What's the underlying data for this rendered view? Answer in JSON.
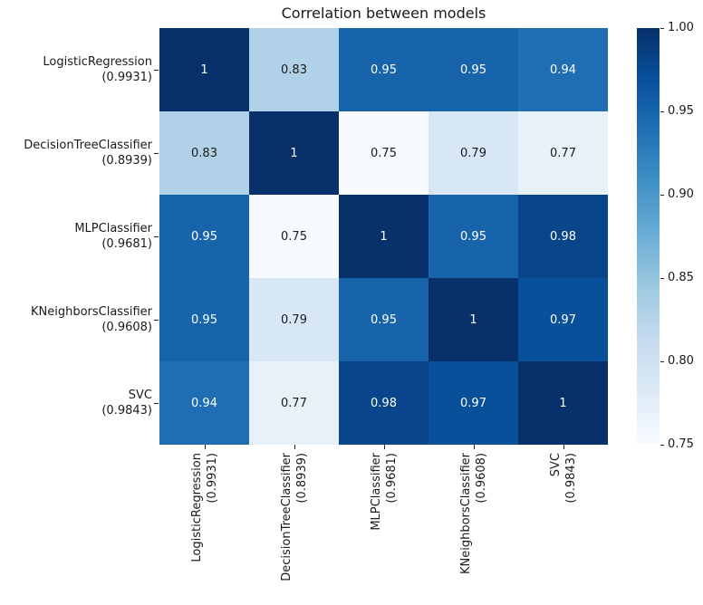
{
  "chart_data": {
    "type": "heatmap",
    "title": "Correlation between models",
    "models": [
      {
        "name": "LogisticRegression",
        "score": "(0.9931)"
      },
      {
        "name": "DecisionTreeClassifier",
        "score": "(0.8939)"
      },
      {
        "name": "MLPClassifier",
        "score": "(0.9681)"
      },
      {
        "name": "KNeighborsClassifier",
        "score": "(0.9608)"
      },
      {
        "name": "SVC",
        "score": "(0.9843)"
      }
    ],
    "matrix": [
      [
        1,
        0.83,
        0.95,
        0.95,
        0.94
      ],
      [
        0.83,
        1,
        0.75,
        0.79,
        0.77
      ],
      [
        0.95,
        0.75,
        1,
        0.95,
        0.98
      ],
      [
        0.95,
        0.79,
        0.95,
        1,
        0.97
      ],
      [
        0.94,
        0.77,
        0.98,
        0.97,
        1
      ]
    ],
    "vmin": 0.75,
    "vmax": 1.0,
    "colormap": "Blues",
    "colormap_anchors": [
      "#f7fbff",
      "#deebf7",
      "#c6dbef",
      "#9ecae1",
      "#6baed6",
      "#4292c6",
      "#2171b5",
      "#08519c",
      "#08306b"
    ],
    "colorbar_ticks": [
      "1.00",
      "0.95",
      "0.90",
      "0.85",
      "0.80",
      "0.75"
    ],
    "colorbar_position": "right",
    "annotation_colors": {
      "light_text": "#ffffff",
      "dark_text": "#1a1a1a"
    },
    "grid": false
  }
}
